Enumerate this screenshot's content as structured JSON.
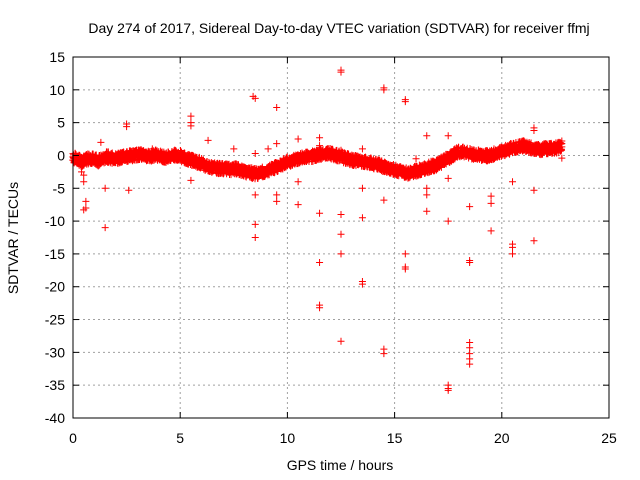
{
  "chart_data": {
    "type": "scatter",
    "title": "Day 274 of 2017, Sidereal Day-to-day VTEC variation (SDTVAR) for receiver ffmj",
    "xlabel": "GPS time / hours",
    "ylabel": "SDTVAR / TECUs",
    "xlim": [
      0,
      25
    ],
    "ylim": [
      -40,
      15
    ],
    "xticks": [
      0,
      5,
      10,
      15,
      20,
      25
    ],
    "yticks": [
      15,
      10,
      5,
      0,
      -5,
      -10,
      -15,
      -20,
      -25,
      -30,
      -35,
      -40
    ],
    "xtick_labels": [
      "0",
      "5",
      "10",
      "15",
      "20",
      "25"
    ],
    "ytick_labels": [
      "15",
      "10",
      "5",
      "0",
      "-5",
      "-10",
      "-15",
      "-20",
      "-25",
      "-30",
      "-35",
      "-40"
    ],
    "grid": true,
    "legend": "none",
    "marker": "+",
    "color": "#ff0000",
    "main_band": [
      [
        0.0,
        -0.3
      ],
      [
        0.2,
        -0.6
      ],
      [
        0.4,
        -0.9
      ],
      [
        0.6,
        -0.7
      ],
      [
        0.8,
        -0.4
      ],
      [
        1.0,
        -0.6
      ],
      [
        1.2,
        -0.8
      ],
      [
        1.4,
        -0.5
      ],
      [
        1.6,
        -0.2
      ],
      [
        1.8,
        -0.4
      ],
      [
        2.0,
        -0.5
      ],
      [
        2.2,
        -0.3
      ],
      [
        2.4,
        -0.2
      ],
      [
        2.6,
        -0.1
      ],
      [
        2.8,
        0.0
      ],
      [
        3.0,
        0.1
      ],
      [
        3.2,
        0.2
      ],
      [
        3.4,
        0.0
      ],
      [
        3.6,
        -0.1
      ],
      [
        3.8,
        0.1
      ],
      [
        4.0,
        0.0
      ],
      [
        4.2,
        -0.2
      ],
      [
        4.4,
        -0.3
      ],
      [
        4.6,
        -0.1
      ],
      [
        4.8,
        0.1
      ],
      [
        5.0,
        0.0
      ],
      [
        5.2,
        -0.4
      ],
      [
        5.4,
        -0.6
      ],
      [
        5.6,
        -0.8
      ],
      [
        5.8,
        -1.0
      ],
      [
        6.0,
        -1.2
      ],
      [
        6.2,
        -1.5
      ],
      [
        6.4,
        -1.7
      ],
      [
        6.6,
        -1.9
      ],
      [
        6.8,
        -2.0
      ],
      [
        7.0,
        -2.0
      ],
      [
        7.2,
        -2.1
      ],
      [
        7.4,
        -2.2
      ],
      [
        7.6,
        -2.0
      ],
      [
        7.8,
        -2.3
      ],
      [
        8.0,
        -2.5
      ],
      [
        8.2,
        -2.6
      ],
      [
        8.4,
        -2.7
      ],
      [
        8.6,
        -2.8
      ],
      [
        8.8,
        -2.6
      ],
      [
        9.0,
        -2.4
      ],
      [
        9.2,
        -2.2
      ],
      [
        9.4,
        -1.9
      ],
      [
        9.6,
        -1.6
      ],
      [
        9.8,
        -1.3
      ],
      [
        10.0,
        -1.0
      ],
      [
        10.2,
        -0.8
      ],
      [
        10.4,
        -0.6
      ],
      [
        10.6,
        -0.4
      ],
      [
        10.8,
        -0.3
      ],
      [
        11.0,
        -0.2
      ],
      [
        11.2,
        -0.1
      ],
      [
        11.4,
        0.0
      ],
      [
        11.6,
        0.2
      ],
      [
        11.8,
        0.4
      ],
      [
        12.0,
        0.3
      ],
      [
        12.2,
        0.1
      ],
      [
        12.4,
        -0.1
      ],
      [
        12.6,
        -0.3
      ],
      [
        12.8,
        -0.5
      ],
      [
        13.0,
        -0.7
      ],
      [
        13.2,
        -0.8
      ],
      [
        13.4,
        -0.9
      ],
      [
        13.6,
        -1.0
      ],
      [
        13.8,
        -1.1
      ],
      [
        14.0,
        -1.2
      ],
      [
        14.2,
        -1.4
      ],
      [
        14.4,
        -1.6
      ],
      [
        14.6,
        -1.8
      ],
      [
        14.8,
        -2.0
      ],
      [
        15.0,
        -2.2
      ],
      [
        15.2,
        -2.4
      ],
      [
        15.4,
        -2.6
      ],
      [
        15.6,
        -2.7
      ],
      [
        15.8,
        -2.6
      ],
      [
        16.0,
        -2.4
      ],
      [
        16.2,
        -2.2
      ],
      [
        16.4,
        -2.0
      ],
      [
        16.6,
        -1.8
      ],
      [
        16.8,
        -1.6
      ],
      [
        17.0,
        -1.4
      ],
      [
        17.2,
        -1.0
      ],
      [
        17.4,
        -0.6
      ],
      [
        17.6,
        -0.2
      ],
      [
        17.8,
        0.2
      ],
      [
        18.0,
        0.5
      ],
      [
        18.2,
        0.6
      ],
      [
        18.4,
        0.4
      ],
      [
        18.6,
        0.2
      ],
      [
        18.8,
        0.1
      ],
      [
        19.0,
        0.0
      ],
      [
        19.2,
        -0.1
      ],
      [
        19.4,
        0.0
      ],
      [
        19.6,
        0.2
      ],
      [
        19.8,
        0.4
      ],
      [
        20.0,
        0.6
      ],
      [
        20.2,
        0.8
      ],
      [
        20.4,
        1.0
      ],
      [
        20.6,
        1.2
      ],
      [
        20.8,
        1.4
      ],
      [
        21.0,
        1.5
      ],
      [
        21.2,
        1.3
      ],
      [
        21.4,
        1.1
      ],
      [
        21.6,
        1.0
      ],
      [
        21.8,
        0.9
      ],
      [
        22.0,
        1.0
      ],
      [
        22.2,
        1.1
      ],
      [
        22.4,
        1.0
      ],
      [
        22.6,
        1.2
      ],
      [
        22.8,
        1.3
      ]
    ],
    "outliers": [
      [
        0.4,
        -2.5
      ],
      [
        0.5,
        -3.0
      ],
      [
        0.5,
        -4.0
      ],
      [
        0.6,
        -7.0
      ],
      [
        0.6,
        -8.0
      ],
      [
        0.5,
        -8.3
      ],
      [
        1.3,
        2.0
      ],
      [
        1.5,
        -5.0
      ],
      [
        1.5,
        -11.0
      ],
      [
        2.5,
        4.8
      ],
      [
        2.5,
        4.4
      ],
      [
        2.6,
        -5.3
      ],
      [
        3.7,
        1.0
      ],
      [
        5.5,
        6.0
      ],
      [
        5.5,
        5.0
      ],
      [
        5.5,
        4.5
      ],
      [
        5.5,
        -3.8
      ],
      [
        6.3,
        2.3
      ],
      [
        7.5,
        1.0
      ],
      [
        8.4,
        9.0
      ],
      [
        8.5,
        8.7
      ],
      [
        8.5,
        0.3
      ],
      [
        8.5,
        -6.0
      ],
      [
        8.5,
        -10.5
      ],
      [
        8.5,
        -12.5
      ],
      [
        9.1,
        1.0
      ],
      [
        9.5,
        7.3
      ],
      [
        9.5,
        1.8
      ],
      [
        9.5,
        -6.0
      ],
      [
        9.5,
        -7.0
      ],
      [
        10.5,
        2.5
      ],
      [
        10.5,
        -4.0
      ],
      [
        10.5,
        -7.5
      ],
      [
        11.5,
        2.7
      ],
      [
        11.5,
        1.5
      ],
      [
        11.5,
        -8.8
      ],
      [
        11.5,
        -16.3
      ],
      [
        11.5,
        -22.8
      ],
      [
        11.5,
        -23.2
      ],
      [
        12.5,
        13.0
      ],
      [
        12.5,
        12.7
      ],
      [
        12.5,
        0.8
      ],
      [
        12.5,
        -9.0
      ],
      [
        12.5,
        -12.0
      ],
      [
        12.5,
        -15.0
      ],
      [
        12.5,
        -28.3
      ],
      [
        13.5,
        1.0
      ],
      [
        13.5,
        -5.0
      ],
      [
        13.5,
        -9.5
      ],
      [
        13.5,
        -19.2
      ],
      [
        13.5,
        -19.6
      ],
      [
        14.5,
        10.3
      ],
      [
        14.5,
        10.0
      ],
      [
        14.5,
        -6.8
      ],
      [
        14.5,
        -29.5
      ],
      [
        14.5,
        -30.2
      ],
      [
        15.5,
        8.5
      ],
      [
        15.5,
        8.2
      ],
      [
        15.5,
        -15.0
      ],
      [
        15.5,
        -17.0
      ],
      [
        15.5,
        -17.3
      ],
      [
        16.0,
        -0.5
      ],
      [
        16.5,
        3.0
      ],
      [
        16.5,
        -5.0
      ],
      [
        16.5,
        -6.0
      ],
      [
        16.5,
        -8.5
      ],
      [
        17.5,
        3.0
      ],
      [
        17.5,
        -3.5
      ],
      [
        17.5,
        -10.0
      ],
      [
        17.5,
        -35.0
      ],
      [
        17.5,
        -35.5
      ],
      [
        17.5,
        -35.8
      ],
      [
        18.5,
        -7.8
      ],
      [
        18.5,
        -16.0
      ],
      [
        18.5,
        -16.3
      ],
      [
        18.5,
        -28.5
      ],
      [
        18.5,
        -29.3
      ],
      [
        18.5,
        -30.2
      ],
      [
        18.5,
        -31.0
      ],
      [
        18.5,
        -31.8
      ],
      [
        19.5,
        -6.2
      ],
      [
        19.5,
        -7.3
      ],
      [
        19.5,
        -11.5
      ],
      [
        20.5,
        -4.0
      ],
      [
        20.5,
        -13.5
      ],
      [
        20.5,
        -14.0
      ],
      [
        20.5,
        -15.0
      ],
      [
        21.5,
        4.2
      ],
      [
        21.5,
        3.8
      ],
      [
        21.5,
        -5.3
      ],
      [
        21.5,
        -13.0
      ],
      [
        22.8,
        2.2
      ],
      [
        22.8,
        1.8
      ],
      [
        22.8,
        -0.4
      ]
    ]
  }
}
